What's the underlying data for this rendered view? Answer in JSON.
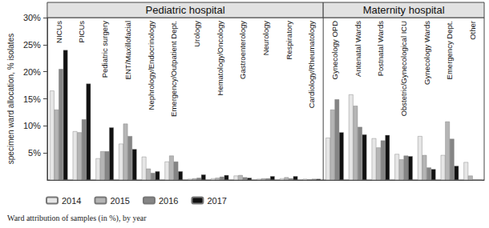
{
  "chart_data": {
    "type": "bar",
    "caption": "Ward attribution of samples (in %), by year",
    "y_label": "specimen ward allocation, % isolates",
    "groups": [
      {
        "label": "Pediatric hospital",
        "first": "NICUs",
        "last": "Cardiology/Rheumatology"
      },
      {
        "label": "Maternity hospital",
        "first": "Gynecology OPD",
        "last": "Other"
      }
    ],
    "categories": [
      "NICUs",
      "PICUs",
      "Pediatric surgery",
      "ENT/Maxillofacial",
      "Nephrology/Endocrinology",
      "Emergency/Outpatient Dept.",
      "Urology",
      "Hematology/Oncology",
      "Gastroenterology",
      "Neurology",
      "Respiratory",
      "Cardiology/Rheumatology",
      "Gynecology OPD",
      "Antenatal Wards",
      "Postnatal Wards",
      "Obstetric/Gynecological ICU",
      "Gynecology Wards",
      "Emergency Dept.",
      "Other"
    ],
    "series": [
      {
        "name": "2014",
        "color": "#e6e6e6",
        "values": [
          16.5,
          9.0,
          4.0,
          6.7,
          4.3,
          3.4,
          0.2,
          0.3,
          0.8,
          0.2,
          0.3,
          0.2,
          7.8,
          15.8,
          7.7,
          4.8,
          8.1,
          4.6,
          3.3
        ]
      },
      {
        "name": "2015",
        "color": "#b5b5b5",
        "values": [
          13.0,
          8.8,
          5.3,
          10.4,
          2.1,
          4.5,
          0.3,
          0.4,
          0.9,
          0.3,
          0.5,
          0.1,
          13.0,
          13.7,
          6.0,
          3.8,
          4.6,
          10.8,
          0.8
        ]
      },
      {
        "name": "2016",
        "color": "#858585",
        "values": [
          20.5,
          11.2,
          5.3,
          8.1,
          1.3,
          3.4,
          0.4,
          0.6,
          0.5,
          0.3,
          0.3,
          0.2,
          14.9,
          9.8,
          7.3,
          4.5,
          2.3,
          7.6,
          0.0
        ]
      },
      {
        "name": "2017",
        "color": "#111111",
        "values": [
          24.0,
          17.8,
          9.7,
          5.7,
          1.6,
          1.6,
          1.0,
          0.9,
          0.4,
          0.7,
          0.7,
          0.2,
          8.8,
          8.4,
          8.3,
          4.4,
          2.0,
          2.6,
          0.0
        ]
      }
    ],
    "ylim": [
      0,
      30
    ],
    "yticks": [
      {
        "value": 5,
        "label": "5%"
      },
      {
        "value": 10,
        "label": "10%"
      },
      {
        "value": 15,
        "label": "15%"
      },
      {
        "value": 20,
        "label": "20%"
      },
      {
        "value": 25,
        "label": "25%"
      },
      {
        "value": 30,
        "label": "30%"
      }
    ],
    "grid": false,
    "legend": "bottom-left"
  }
}
